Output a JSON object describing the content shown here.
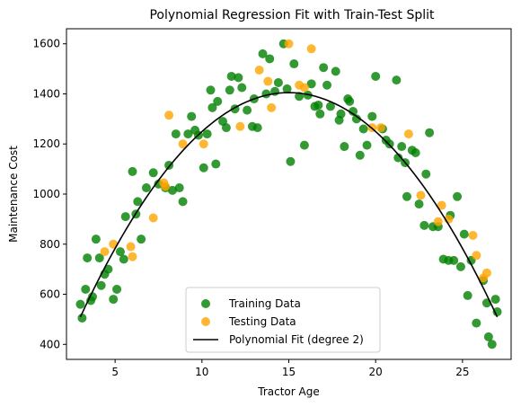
{
  "chart_data": {
    "type": "scatter",
    "title": "Polynomial Regression Fit with Train-Test Split",
    "xlabel": "Tractor Age",
    "ylabel": "Maintenance Cost",
    "xlim": [
      2.2,
      27.8
    ],
    "ylim": [
      340,
      1660
    ],
    "xticks": [
      5,
      10,
      15,
      20,
      25
    ],
    "yticks": [
      400,
      600,
      800,
      1000,
      1200,
      1400,
      1600
    ],
    "grid": false,
    "legend_position": "bottom-center",
    "series": [
      {
        "name": "Training Data",
        "kind": "scatter",
        "color": "#008000",
        "points": [
          [
            3.0,
            560
          ],
          [
            3.1,
            505
          ],
          [
            3.3,
            620
          ],
          [
            3.4,
            745
          ],
          [
            3.6,
            575
          ],
          [
            3.7,
            590
          ],
          [
            3.9,
            820
          ],
          [
            4.1,
            745
          ],
          [
            4.2,
            635
          ],
          [
            4.4,
            680
          ],
          [
            4.6,
            700
          ],
          [
            4.9,
            580
          ],
          [
            5.1,
            620
          ],
          [
            5.3,
            770
          ],
          [
            5.5,
            740
          ],
          [
            5.6,
            910
          ],
          [
            6.0,
            1090
          ],
          [
            6.2,
            920
          ],
          [
            6.3,
            970
          ],
          [
            6.5,
            820
          ],
          [
            6.8,
            1025
          ],
          [
            7.2,
            1085
          ],
          [
            7.5,
            1040
          ],
          [
            7.9,
            1025
          ],
          [
            8.1,
            1115
          ],
          [
            8.3,
            1015
          ],
          [
            8.5,
            1240
          ],
          [
            8.7,
            1025
          ],
          [
            8.9,
            970
          ],
          [
            9.2,
            1240
          ],
          [
            9.4,
            1310
          ],
          [
            9.6,
            1255
          ],
          [
            9.8,
            1235
          ],
          [
            10.1,
            1105
          ],
          [
            10.3,
            1240
          ],
          [
            10.5,
            1415
          ],
          [
            10.6,
            1345
          ],
          [
            10.8,
            1120
          ],
          [
            10.9,
            1370
          ],
          [
            11.2,
            1290
          ],
          [
            11.4,
            1265
          ],
          [
            11.6,
            1415
          ],
          [
            11.7,
            1470
          ],
          [
            11.9,
            1340
          ],
          [
            12.1,
            1465
          ],
          [
            12.3,
            1425
          ],
          [
            12.6,
            1335
          ],
          [
            12.9,
            1270
          ],
          [
            13.0,
            1380
          ],
          [
            13.2,
            1265
          ],
          [
            13.5,
            1560
          ],
          [
            13.7,
            1400
          ],
          [
            13.9,
            1540
          ],
          [
            14.2,
            1410
          ],
          [
            14.4,
            1445
          ],
          [
            14.7,
            1600
          ],
          [
            14.9,
            1420
          ],
          [
            15.1,
            1130
          ],
          [
            15.3,
            1520
          ],
          [
            15.6,
            1390
          ],
          [
            15.9,
            1195
          ],
          [
            16.1,
            1395
          ],
          [
            16.3,
            1440
          ],
          [
            16.5,
            1350
          ],
          [
            16.7,
            1355
          ],
          [
            16.8,
            1320
          ],
          [
            17.0,
            1505
          ],
          [
            17.2,
            1435
          ],
          [
            17.4,
            1350
          ],
          [
            17.7,
            1490
          ],
          [
            17.9,
            1295
          ],
          [
            18.0,
            1320
          ],
          [
            18.2,
            1190
          ],
          [
            18.4,
            1380
          ],
          [
            18.5,
            1370
          ],
          [
            18.7,
            1330
          ],
          [
            18.9,
            1300
          ],
          [
            19.1,
            1155
          ],
          [
            19.3,
            1260
          ],
          [
            19.5,
            1195
          ],
          [
            19.8,
            1310
          ],
          [
            20.0,
            1470
          ],
          [
            20.4,
            1260
          ],
          [
            20.6,
            1215
          ],
          [
            20.8,
            1200
          ],
          [
            21.2,
            1455
          ],
          [
            21.3,
            1145
          ],
          [
            21.5,
            1190
          ],
          [
            21.7,
            1125
          ],
          [
            21.8,
            990
          ],
          [
            22.1,
            1175
          ],
          [
            22.3,
            1165
          ],
          [
            22.5,
            960
          ],
          [
            22.8,
            875
          ],
          [
            22.9,
            1080
          ],
          [
            23.1,
            1245
          ],
          [
            23.3,
            870
          ],
          [
            23.6,
            870
          ],
          [
            23.9,
            740
          ],
          [
            24.2,
            735
          ],
          [
            24.3,
            915
          ],
          [
            24.5,
            735
          ],
          [
            24.7,
            990
          ],
          [
            24.9,
            710
          ],
          [
            25.1,
            840
          ],
          [
            25.3,
            595
          ],
          [
            25.5,
            735
          ],
          [
            25.8,
            485
          ],
          [
            26.2,
            655
          ],
          [
            26.4,
            565
          ],
          [
            26.5,
            430
          ],
          [
            26.7,
            400
          ],
          [
            26.9,
            580
          ],
          [
            27.0,
            530
          ]
        ]
      },
      {
        "name": "Testing Data",
        "kind": "scatter",
        "color": "#FFA500",
        "points": [
          [
            4.4,
            770
          ],
          [
            4.9,
            800
          ],
          [
            5.9,
            790
          ],
          [
            6.0,
            750
          ],
          [
            7.2,
            905
          ],
          [
            7.8,
            1045
          ],
          [
            7.9,
            1030
          ],
          [
            8.1,
            1315
          ],
          [
            8.9,
            1200
          ],
          [
            10.1,
            1200
          ],
          [
            12.2,
            1270
          ],
          [
            13.3,
            1495
          ],
          [
            13.8,
            1450
          ],
          [
            14.0,
            1345
          ],
          [
            15.0,
            1600
          ],
          [
            15.6,
            1435
          ],
          [
            15.9,
            1425
          ],
          [
            16.3,
            1580
          ],
          [
            19.8,
            1265
          ],
          [
            20.3,
            1265
          ],
          [
            21.9,
            1240
          ],
          [
            22.6,
            995
          ],
          [
            23.6,
            890
          ],
          [
            23.8,
            955
          ],
          [
            24.2,
            900
          ],
          [
            25.6,
            835
          ],
          [
            25.8,
            755
          ],
          [
            26.2,
            665
          ],
          [
            26.4,
            685
          ]
        ]
      },
      {
        "name": "Polynomial Fit (degree 2)",
        "kind": "line",
        "color": "#000000",
        "degree": 2,
        "vertex_x": 15.0,
        "vertex_y": 1405,
        "curvature": -6.22,
        "x_range": [
          3.0,
          27.0
        ]
      }
    ]
  }
}
